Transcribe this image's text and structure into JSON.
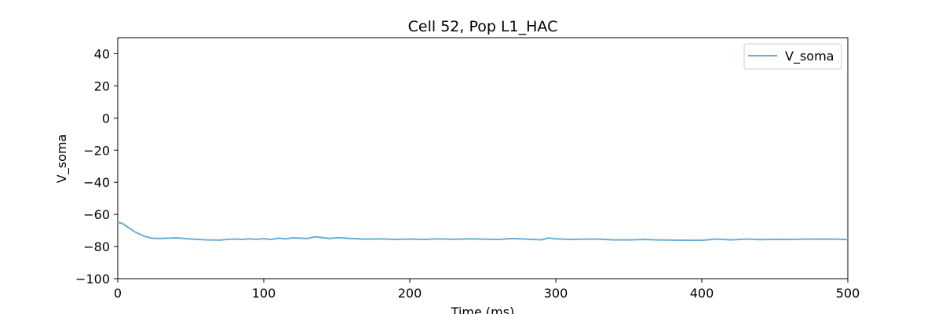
{
  "chart_data": {
    "type": "line",
    "title": "Cell 52, Pop L1_HAC",
    "xlabel": "Time (ms)",
    "ylabel": "V_soma",
    "xlim": [
      0,
      500
    ],
    "ylim": [
      -100,
      50
    ],
    "xticks": [
      0,
      100,
      200,
      300,
      400,
      500
    ],
    "yticks": [
      -100,
      -80,
      -60,
      -40,
      -20,
      0,
      20,
      40
    ],
    "grid": false,
    "legend_position": "top-right",
    "series": [
      {
        "name": "V_soma",
        "color": "#6aaed6",
        "x": [
          0,
          3,
          7,
          12,
          18,
          23,
          28,
          35,
          40,
          50,
          60,
          70,
          75,
          80,
          85,
          90,
          95,
          100,
          105,
          110,
          115,
          120,
          125,
          130,
          135,
          140,
          145,
          150,
          160,
          170,
          180,
          190,
          200,
          210,
          220,
          230,
          240,
          250,
          260,
          270,
          280,
          290,
          295,
          300,
          310,
          320,
          330,
          340,
          350,
          360,
          370,
          380,
          390,
          400,
          410,
          420,
          430,
          440,
          450,
          460,
          470,
          480,
          490,
          500
        ],
        "y": [
          -65,
          -65.5,
          -68,
          -71,
          -73.5,
          -74.8,
          -75,
          -74.8,
          -74.6,
          -75.3,
          -75.8,
          -76,
          -75.5,
          -75.3,
          -75.6,
          -75.2,
          -75.5,
          -75.1,
          -75.6,
          -74.8,
          -75.2,
          -74.6,
          -74.8,
          -75,
          -73.9,
          -74.4,
          -75,
          -74.5,
          -75,
          -75.4,
          -75.2,
          -75.6,
          -75.3,
          -75.6,
          -75.2,
          -75.5,
          -75.2,
          -75.4,
          -75.6,
          -75,
          -75.4,
          -75.8,
          -74.7,
          -75.2,
          -75.6,
          -75.4,
          -75.4,
          -75.9,
          -75.9,
          -75.6,
          -75.9,
          -76,
          -76.1,
          -76.1,
          -75.3,
          -75.9,
          -75.3,
          -75.7,
          -75.5,
          -75.6,
          -75.4,
          -75.4,
          -75.3,
          -75.7
        ]
      }
    ]
  }
}
